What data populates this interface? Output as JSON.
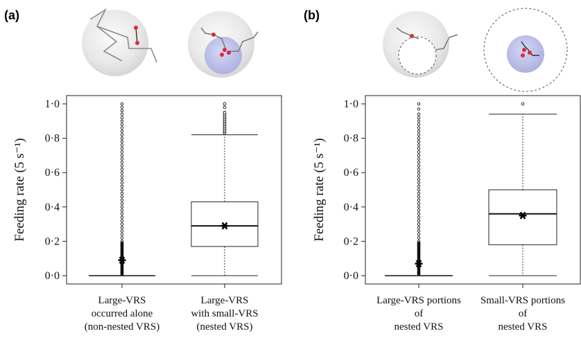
{
  "panels": [
    {
      "label": "(a)",
      "ylabel": "Feeding rate (5 s⁻¹)"
    },
    {
      "label": "(b)",
      "ylabel": "Feeding rate (5 s⁻¹)"
    }
  ],
  "colors": {
    "sphere": "#e6e6e6",
    "inner_sphere": "#c4c6ec",
    "point": "#d92b3a",
    "path": "#8c8c8c",
    "box": "#222222"
  },
  "chart_data": [
    {
      "type": "box",
      "panel": "(a)",
      "ylabel": "Feeding rate (5 s⁻¹)",
      "ylim": [
        0,
        1
      ],
      "yticks": [
        "0·0",
        "0·2",
        "0·4",
        "0·6",
        "0·8",
        "1·0"
      ],
      "categories": [
        [
          "Large-VRS",
          "occurred alone",
          "(non-nested VRS)"
        ],
        [
          "Large-VRS",
          "with small-VRS",
          "(nested VRS)"
        ]
      ],
      "boxes": [
        {
          "q1": 0.0,
          "median": 0.0,
          "q3": 0.0,
          "whisker_low": 0.0,
          "whisker_high": 0.0,
          "mean": 0.09,
          "outliers": [
            0.02,
            0.04,
            0.06,
            0.08,
            0.1,
            0.12,
            0.14,
            0.16,
            0.18,
            0.2,
            0.22,
            0.24,
            0.26,
            0.28,
            0.3,
            0.32,
            0.34,
            0.36,
            0.38,
            0.4,
            0.42,
            0.44,
            0.46,
            0.48,
            0.5,
            0.52,
            0.54,
            0.56,
            0.58,
            0.6,
            0.62,
            0.64,
            0.66,
            0.68,
            0.7,
            0.72,
            0.74,
            0.76,
            0.78,
            0.8,
            0.82,
            0.84,
            0.86,
            0.88,
            0.9,
            0.92,
            0.94,
            0.96,
            0.98,
            1.0
          ]
        },
        {
          "q1": 0.17,
          "median": 0.29,
          "q3": 0.43,
          "whisker_low": 0.0,
          "whisker_high": 0.82,
          "mean": 0.29,
          "outliers": [
            0.83,
            0.84,
            0.85,
            0.86,
            0.87,
            0.88,
            0.89,
            0.9,
            0.91,
            0.92,
            0.93,
            0.94,
            0.95,
            0.98,
            1.0
          ]
        }
      ]
    },
    {
      "type": "box",
      "panel": "(b)",
      "ylabel": "Feeding rate (5 s⁻¹)",
      "ylim": [
        0,
        1
      ],
      "yticks": [
        "0·0",
        "0·2",
        "0·4",
        "0·6",
        "0·8",
        "1·0"
      ],
      "categories": [
        [
          "Large-VRS portions",
          "of",
          "nested VRS"
        ],
        [
          "Small-VRS portions",
          "of",
          "nested VRS"
        ]
      ],
      "boxes": [
        {
          "q1": 0.0,
          "median": 0.0,
          "q3": 0.0,
          "whisker_low": 0.0,
          "whisker_high": 0.0,
          "mean": 0.07,
          "outliers": [
            0.02,
            0.04,
            0.06,
            0.08,
            0.1,
            0.12,
            0.14,
            0.16,
            0.18,
            0.2,
            0.22,
            0.24,
            0.26,
            0.28,
            0.3,
            0.32,
            0.34,
            0.36,
            0.38,
            0.4,
            0.42,
            0.44,
            0.46,
            0.48,
            0.5,
            0.52,
            0.54,
            0.56,
            0.58,
            0.6,
            0.62,
            0.64,
            0.66,
            0.68,
            0.7,
            0.72,
            0.74,
            0.76,
            0.78,
            0.8,
            0.82,
            0.84,
            0.86,
            0.88,
            0.9,
            0.92,
            0.94,
            0.97,
            1.0
          ]
        },
        {
          "q1": 0.18,
          "median": 0.36,
          "q3": 0.5,
          "whisker_low": 0.0,
          "whisker_high": 0.94,
          "mean": 0.35,
          "outliers": [
            1.0
          ]
        }
      ]
    }
  ]
}
